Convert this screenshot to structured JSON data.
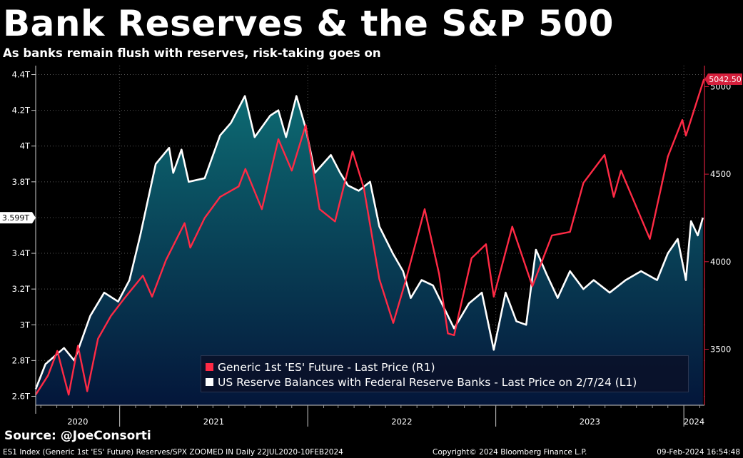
{
  "title": "Bank Reserves & the S&P 500",
  "subtitle": "As banks remain flush with reserves, risk-taking goes on",
  "source": "Source: @JoeConsorti",
  "footer": {
    "left": "ES1 Index (Generic 1st 'ES' Future) Reserves/SPX ZOOMED IN  Daily 22JUL2020-10FEB2024",
    "middle": "Copyright© 2024 Bloomberg Finance L.P.",
    "right": "09-Feb-2024 16:54:48"
  },
  "colors": {
    "background": "#000000",
    "es_line": "#ff2a45",
    "reserves_line": "#ffffff",
    "reserves_fill_top": "#0d6a72",
    "reserves_fill_bottom": "#04163a",
    "right_axis": "#d51f3c",
    "grid": "#555555"
  },
  "chart_data": {
    "type": "line",
    "x_range": [
      "2020-07-22",
      "2024-02-10"
    ],
    "x_ticks": [
      "2020",
      "2021",
      "2022",
      "2023",
      "2024"
    ],
    "legend_position": "bottom-right",
    "grid": true,
    "left_axis": {
      "unit": "T",
      "range": [
        2.55,
        4.45
      ],
      "ticks": [
        "2.6T",
        "2.8T",
        "3T",
        "3.2T",
        "3.4T",
        "3.6T",
        "3.8T",
        "4T",
        "4.2T",
        "4.4T"
      ],
      "tick_values": [
        2.6,
        2.8,
        3.0,
        3.2,
        3.4,
        3.6,
        3.8,
        4.0,
        4.2,
        4.4
      ],
      "last_label": "3.599T",
      "last_value": 3.599
    },
    "right_axis": {
      "range": [
        3180,
        5120
      ],
      "ticks": [
        "3500",
        "4000",
        "4500",
        "5000"
      ],
      "tick_values": [
        3500,
        4000,
        4500,
        5000
      ],
      "last_label": "5042.50",
      "last_value": 5042.5
    },
    "series": [
      {
        "name": "Generic 1st 'ES' Future - Last Price (R1)",
        "axis": "right",
        "color": "#ff2a45",
        "points": [
          [
            "2020-07-22",
            3240
          ],
          [
            "2020-08-15",
            3350
          ],
          [
            "2020-09-02",
            3490
          ],
          [
            "2020-09-24",
            3240
          ],
          [
            "2020-10-12",
            3520
          ],
          [
            "2020-10-30",
            3260
          ],
          [
            "2020-11-20",
            3560
          ],
          [
            "2020-12-15",
            3690
          ],
          [
            "2021-01-10",
            3790
          ],
          [
            "2021-02-15",
            3920
          ],
          [
            "2021-03-05",
            3800
          ],
          [
            "2021-04-01",
            4010
          ],
          [
            "2021-05-07",
            4220
          ],
          [
            "2021-05-18",
            4080
          ],
          [
            "2021-06-15",
            4250
          ],
          [
            "2021-07-15",
            4370
          ],
          [
            "2021-08-20",
            4430
          ],
          [
            "2021-09-02",
            4530
          ],
          [
            "2021-10-04",
            4300
          ],
          [
            "2021-11-05",
            4700
          ],
          [
            "2021-12-01",
            4520
          ],
          [
            "2021-12-28",
            4780
          ],
          [
            "2022-01-24",
            4300
          ],
          [
            "2022-02-23",
            4230
          ],
          [
            "2022-03-29",
            4630
          ],
          [
            "2022-04-20",
            4420
          ],
          [
            "2022-05-20",
            3900
          ],
          [
            "2022-06-16",
            3650
          ],
          [
            "2022-07-10",
            3890
          ],
          [
            "2022-08-16",
            4300
          ],
          [
            "2022-09-13",
            3930
          ],
          [
            "2022-09-30",
            3590
          ],
          [
            "2022-10-12",
            3580
          ],
          [
            "2022-11-15",
            4020
          ],
          [
            "2022-12-13",
            4100
          ],
          [
            "2022-12-28",
            3800
          ],
          [
            "2023-02-02",
            4200
          ],
          [
            "2023-03-13",
            3860
          ],
          [
            "2023-04-20",
            4150
          ],
          [
            "2023-05-25",
            4170
          ],
          [
            "2023-06-20",
            4450
          ],
          [
            "2023-07-31",
            4610
          ],
          [
            "2023-08-18",
            4370
          ],
          [
            "2023-09-01",
            4520
          ],
          [
            "2023-10-27",
            4130
          ],
          [
            "2023-12-01",
            4600
          ],
          [
            "2023-12-29",
            4810
          ],
          [
            "2024-01-05",
            4720
          ],
          [
            "2024-02-09",
            5042.5
          ]
        ]
      },
      {
        "name": "US Reserve Balances with Federal Reserve Banks - Last Price on 2/7/24 (L1)",
        "axis": "left",
        "color": "#ffffff",
        "points": [
          [
            "2020-07-22",
            2.64
          ],
          [
            "2020-08-10",
            2.78
          ],
          [
            "2020-09-15",
            2.87
          ],
          [
            "2020-10-05",
            2.8
          ],
          [
            "2020-11-05",
            3.05
          ],
          [
            "2020-12-02",
            3.18
          ],
          [
            "2020-12-29",
            3.13
          ],
          [
            "2021-01-20",
            3.25
          ],
          [
            "2021-02-10",
            3.5
          ],
          [
            "2021-03-12",
            3.9
          ],
          [
            "2021-04-07",
            3.99
          ],
          [
            "2021-04-15",
            3.85
          ],
          [
            "2021-05-01",
            3.98
          ],
          [
            "2021-05-15",
            3.8
          ],
          [
            "2021-06-15",
            3.82
          ],
          [
            "2021-07-15",
            4.06
          ],
          [
            "2021-08-05",
            4.13
          ],
          [
            "2021-09-01",
            4.28
          ],
          [
            "2021-09-20",
            4.05
          ],
          [
            "2021-10-20",
            4.17
          ],
          [
            "2021-11-05",
            4.2
          ],
          [
            "2021-11-20",
            4.05
          ],
          [
            "2021-12-10",
            4.28
          ],
          [
            "2021-12-28",
            4.1
          ],
          [
            "2022-01-15",
            3.85
          ],
          [
            "2022-02-15",
            3.95
          ],
          [
            "2022-03-05",
            3.85
          ],
          [
            "2022-03-20",
            3.78
          ],
          [
            "2022-04-10",
            3.75
          ],
          [
            "2022-05-02",
            3.8
          ],
          [
            "2022-05-20",
            3.55
          ],
          [
            "2022-06-15",
            3.4
          ],
          [
            "2022-07-05",
            3.3
          ],
          [
            "2022-07-20",
            3.15
          ],
          [
            "2022-08-10",
            3.25
          ],
          [
            "2022-09-01",
            3.22
          ],
          [
            "2022-09-25",
            3.08
          ],
          [
            "2022-10-12",
            2.98
          ],
          [
            "2022-11-10",
            3.12
          ],
          [
            "2022-12-05",
            3.18
          ],
          [
            "2022-12-28",
            2.86
          ],
          [
            "2023-01-20",
            3.18
          ],
          [
            "2023-02-10",
            3.02
          ],
          [
            "2023-03-01",
            3.0
          ],
          [
            "2023-03-20",
            3.42
          ],
          [
            "2023-04-10",
            3.28
          ],
          [
            "2023-05-01",
            3.15
          ],
          [
            "2023-05-25",
            3.3
          ],
          [
            "2023-06-20",
            3.2
          ],
          [
            "2023-07-10",
            3.25
          ],
          [
            "2023-08-10",
            3.18
          ],
          [
            "2023-09-10",
            3.25
          ],
          [
            "2023-10-10",
            3.3
          ],
          [
            "2023-11-10",
            3.25
          ],
          [
            "2023-12-01",
            3.4
          ],
          [
            "2023-12-20",
            3.48
          ],
          [
            "2024-01-05",
            3.25
          ],
          [
            "2024-01-15",
            3.58
          ],
          [
            "2024-01-28",
            3.5
          ],
          [
            "2024-02-07",
            3.599
          ]
        ]
      }
    ]
  }
}
